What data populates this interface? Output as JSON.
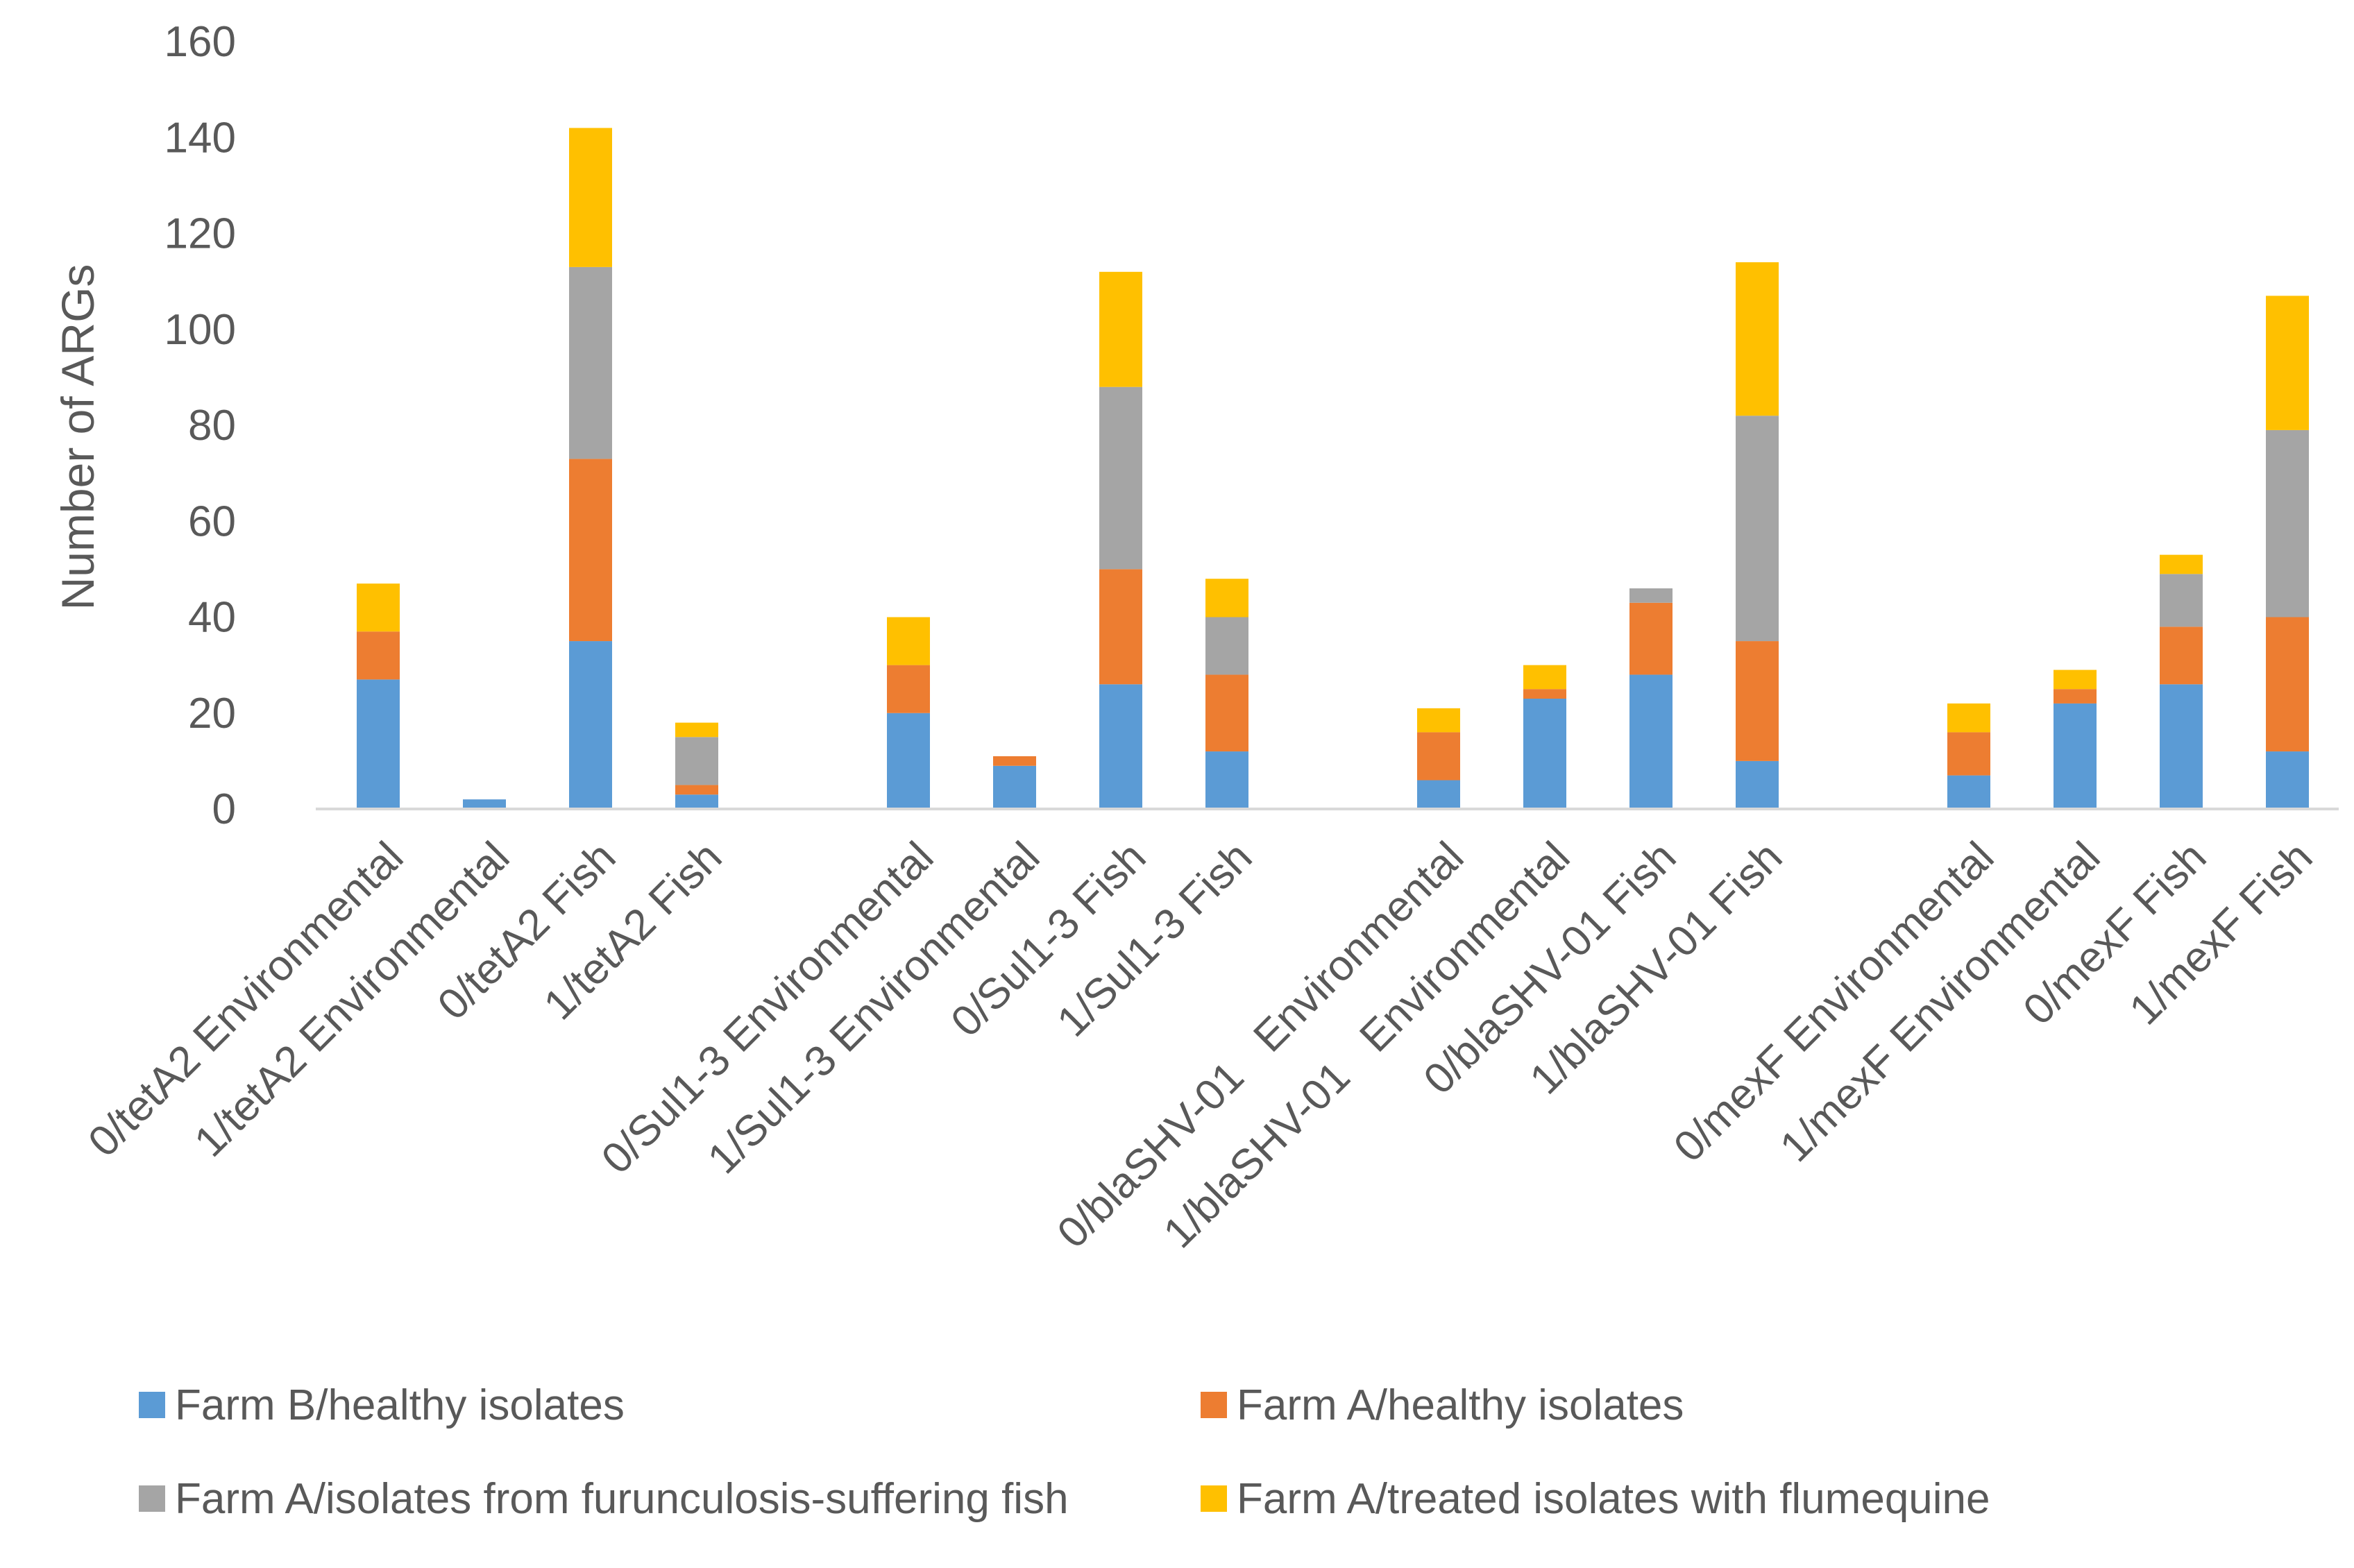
{
  "chart_data": {
    "type": "bar",
    "stacked": true,
    "title": "",
    "xlabel": "",
    "ylabel": "Number of ARGs",
    "ylim": [
      0,
      160
    ],
    "yticks": [
      0,
      20,
      40,
      60,
      80,
      100,
      120,
      140,
      160
    ],
    "grid": false,
    "legend_position": "bottom",
    "categories": [
      "0/tetA2 Environmental",
      "1/tetA2 Environmental",
      "0/tetA2 Fish",
      "1/tetA2 Fish",
      "0/Sul1-3 Environmental",
      "1/Sul1-3 Environmental",
      "0/Sul1-3 Fish",
      "1/Sul1-3 Fish",
      "0/blaSHV-01   Environmental",
      "1/blaSHV-01   Environmental",
      "0/blaSHV-01 Fish",
      "1/blaSHV-01 Fish",
      "0/mexF Environmental",
      "1/mexF Environmental",
      "0/mexF Fish",
      "1/mexF Fish"
    ],
    "groups": [
      [
        "0/tetA2 Environmental",
        "1/tetA2 Environmental",
        "0/tetA2 Fish",
        "1/tetA2 Fish"
      ],
      [
        "0/Sul1-3 Environmental",
        "1/Sul1-3 Environmental",
        "0/Sul1-3 Fish",
        "1/Sul1-3 Fish"
      ],
      [
        "0/blaSHV-01   Environmental",
        "1/blaSHV-01   Environmental",
        "0/blaSHV-01 Fish",
        "1/blaSHV-01 Fish"
      ],
      [
        "0/mexF Environmental",
        "1/mexF Environmental",
        "0/mexF Fish",
        "1/mexF Fish"
      ]
    ],
    "series": [
      {
        "name": "Farm B/healthy isolates",
        "color": "#5B9BD5",
        "values": [
          27,
          2,
          35,
          3,
          20,
          9,
          26,
          12,
          6,
          23,
          28,
          10,
          7,
          22,
          26,
          12
        ]
      },
      {
        "name": "Farm A/healthy isolates",
        "color": "#ED7D31",
        "values": [
          10,
          0,
          38,
          2,
          10,
          2,
          24,
          16,
          10,
          2,
          15,
          25,
          9,
          3,
          12,
          28
        ]
      },
      {
        "name": "Farm A/isolates from furunculosis-suffering fish",
        "color": "#A5A5A5",
        "values": [
          0,
          0,
          40,
          10,
          0,
          0,
          38,
          12,
          0,
          0,
          3,
          47,
          0,
          0,
          11,
          39
        ]
      },
      {
        "name": "Farm A/treated isolates with flumequine",
        "color": "#FFC000",
        "values": [
          10,
          0,
          29,
          3,
          10,
          0,
          24,
          8,
          5,
          5,
          0,
          32,
          6,
          4,
          4,
          28
        ]
      }
    ]
  }
}
